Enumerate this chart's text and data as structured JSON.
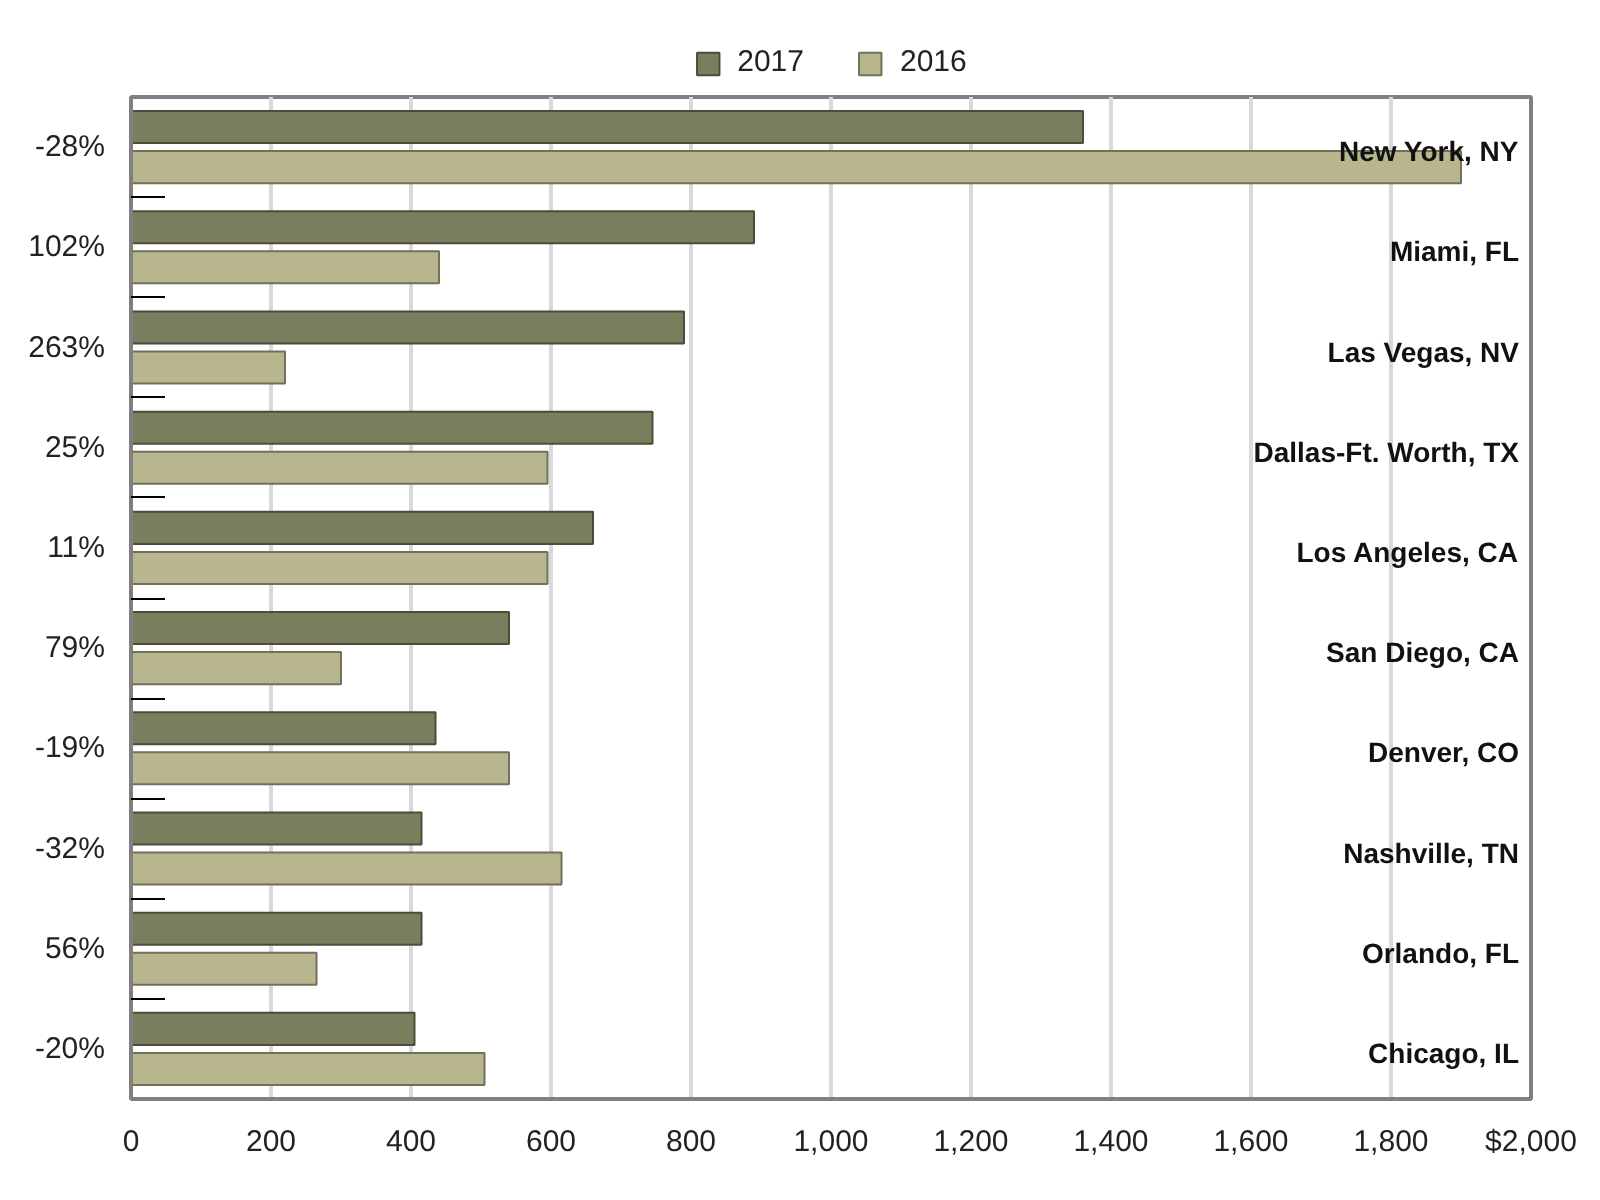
{
  "chart_data": {
    "type": "bar",
    "orientation": "horizontal",
    "categories": [
      "-28%",
      "102%",
      "263%",
      "25%",
      "11%",
      "79%",
      "-19%",
      "-32%",
      "56%",
      "-20%"
    ],
    "y2_categories": [
      "New York, NY",
      "Miami, FL",
      "Las Vegas, NV",
      "Dallas-Ft. Worth, TX",
      "Los Angeles, CA",
      "San Diego, CA",
      "Denver, CO",
      "Nashville, TN",
      "Orlando, FL",
      "Chicago, IL"
    ],
    "series": [
      {
        "name": "2017",
        "color": "#7a7d5e",
        "values": [
          1360,
          890,
          790,
          745,
          660,
          540,
          435,
          415,
          415,
          405
        ]
      },
      {
        "name": "2016",
        "color": "#b8b68f",
        "values": [
          1900,
          440,
          220,
          595,
          595,
          300,
          540,
          615,
          265,
          505
        ]
      }
    ],
    "xlim": [
      0,
      2000
    ],
    "xticks": [
      0,
      200,
      400,
      600,
      800,
      {
        "value": 1000,
        "label": "1,000"
      },
      {
        "value": 1200,
        "label": "1,200"
      },
      {
        "value": 1400,
        "label": "1,400"
      },
      {
        "value": 1600,
        "label": "1,600"
      },
      {
        "value": 1800,
        "label": "1,800"
      },
      {
        "value": 2000,
        "label": "$2,000"
      }
    ],
    "grid": "x",
    "legend": "top"
  }
}
